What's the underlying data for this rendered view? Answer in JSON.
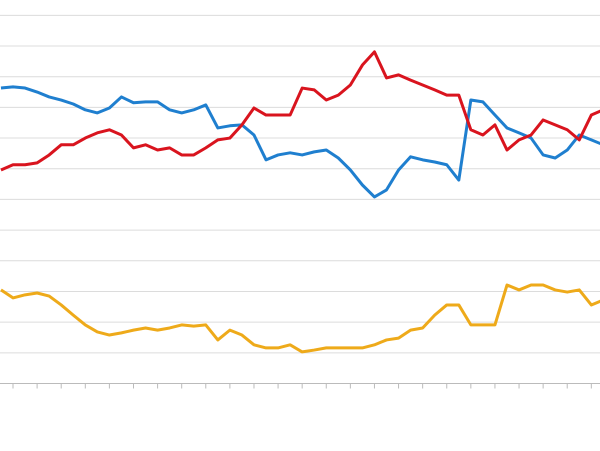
{
  "chart_data": {
    "type": "line",
    "x": [
      -0.5,
      0,
      0.5,
      1,
      1.5,
      2,
      2.5,
      3,
      3.5,
      4,
      4.5,
      5,
      5.5,
      6,
      6.5,
      7,
      7.5,
      8,
      8.5,
      9,
      9.5,
      10,
      10.5,
      11,
      11.5,
      12,
      12.5,
      13,
      13.5,
      14,
      14.5,
      15,
      15.5,
      16,
      16.5,
      17,
      17.5,
      18,
      18.5,
      19,
      19.5,
      20,
      20.5,
      21,
      21.5,
      22,
      22.5,
      23,
      23.5,
      24,
      24.5
    ],
    "series": [
      {
        "color": "#1f7fcf",
        "values": [
          9.63,
          9.67,
          9.63,
          9.5,
          9.34,
          9.24,
          9.11,
          8.92,
          8.82,
          8.98,
          9.34,
          9.15,
          9.18,
          9.18,
          8.92,
          8.82,
          8.92,
          9.08,
          8.33,
          8.4,
          8.43,
          8.1,
          7.29,
          7.45,
          7.52,
          7.45,
          7.55,
          7.61,
          7.35,
          6.96,
          6.47,
          6.08,
          6.31,
          6.96,
          7.39,
          7.29,
          7.22,
          7.13,
          6.63,
          9.24,
          9.18,
          8.75,
          8.33,
          8.17,
          8.0,
          7.45,
          7.35,
          7.61,
          8.1,
          7.94,
          7.78
        ]
      },
      {
        "color": "#d9141e",
        "values": [
          6.96,
          7.13,
          7.13,
          7.19,
          7.45,
          7.78,
          7.78,
          8.0,
          8.17,
          8.27,
          8.1,
          7.68,
          7.78,
          7.61,
          7.68,
          7.45,
          7.45,
          7.68,
          7.94,
          8.0,
          8.43,
          8.98,
          8.75,
          8.75,
          8.75,
          9.63,
          9.57,
          9.24,
          9.4,
          9.73,
          10.38,
          10.81,
          9.96,
          10.06,
          9.89,
          9.73,
          9.57,
          9.4,
          9.4,
          8.27,
          8.1,
          8.43,
          7.61,
          7.94,
          8.1,
          8.59,
          8.43,
          8.27,
          7.94,
          8.75,
          8.92
        ]
      },
      {
        "color": "#eeaa1a",
        "values": [
          3.05,
          2.79,
          2.89,
          2.95,
          2.85,
          2.56,
          2.23,
          1.91,
          1.68,
          1.58,
          1.65,
          1.74,
          1.81,
          1.74,
          1.81,
          1.91,
          1.87,
          1.91,
          1.42,
          1.74,
          1.58,
          1.26,
          1.16,
          1.16,
          1.26,
          1.03,
          1.09,
          1.16,
          1.16,
          1.16,
          1.16,
          1.26,
          1.42,
          1.48,
          1.74,
          1.81,
          2.23,
          2.56,
          2.56,
          1.91,
          1.91,
          1.91,
          3.21,
          3.05,
          3.21,
          3.21,
          3.05,
          2.98,
          3.05,
          2.56,
          2.72
        ]
      }
    ],
    "xlim": [
      -0.54,
      24.36
    ],
    "xticks": [
      0,
      1,
      2,
      3,
      4,
      5,
      6,
      7,
      8,
      9,
      10,
      11,
      12,
      13,
      14,
      15,
      16,
      17,
      18,
      19,
      20,
      21,
      22,
      23,
      24
    ],
    "ylim": [
      -2.2,
      12.5
    ],
    "yticks": [
      0,
      1,
      2,
      3,
      4,
      5,
      6,
      7,
      8,
      9,
      10,
      11,
      12
    ],
    "grid": true
  }
}
